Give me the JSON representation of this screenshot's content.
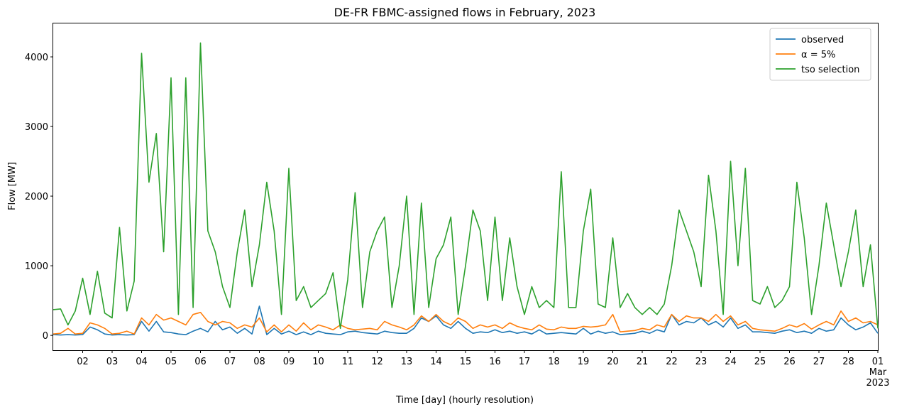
{
  "chart_data": {
    "type": "line",
    "title": "DE-FR FBMC-assigned flows in February, 2023",
    "xlabel": "Time [day] (hourly resolution)",
    "ylabel": "Flow [MW]",
    "x": [
      1,
      1.25,
      1.5,
      1.75,
      2,
      2.25,
      2.5,
      2.75,
      3,
      3.25,
      3.5,
      3.75,
      4,
      4.25,
      4.5,
      4.75,
      5,
      5.25,
      5.5,
      5.75,
      6,
      6.25,
      6.5,
      6.75,
      7,
      7.25,
      7.5,
      7.75,
      8,
      8.25,
      8.5,
      8.75,
      9,
      9.25,
      9.5,
      9.75,
      10,
      10.25,
      10.5,
      10.75,
      11,
      11.25,
      11.5,
      11.75,
      12,
      12.25,
      12.5,
      12.75,
      13,
      13.25,
      13.5,
      13.75,
      14,
      14.25,
      14.5,
      14.75,
      15,
      15.25,
      15.5,
      15.75,
      16,
      16.25,
      16.5,
      16.75,
      17,
      17.25,
      17.5,
      17.75,
      18,
      18.25,
      18.5,
      18.75,
      19,
      19.25,
      19.5,
      19.75,
      20,
      20.25,
      20.5,
      20.75,
      21,
      21.25,
      21.5,
      21.75,
      22,
      22.25,
      22.5,
      22.75,
      23,
      23.25,
      23.5,
      23.75,
      24,
      24.25,
      24.5,
      24.75,
      25,
      25.25,
      25.5,
      25.75,
      26,
      26.25,
      26.5,
      26.75,
      27,
      27.25,
      27.5,
      27.75,
      28,
      28.25,
      28.5,
      28.75,
      29
    ],
    "series": [
      {
        "name": "observed",
        "color": "#1f77b4",
        "values": [
          10,
          5,
          10,
          5,
          10,
          120,
          80,
          20,
          5,
          10,
          5,
          10,
          200,
          60,
          200,
          50,
          40,
          20,
          10,
          60,
          100,
          50,
          200,
          80,
          120,
          30,
          100,
          20,
          420,
          10,
          100,
          20,
          60,
          10,
          50,
          10,
          60,
          30,
          20,
          10,
          50,
          60,
          40,
          30,
          20,
          60,
          40,
          30,
          30,
          100,
          250,
          200,
          280,
          150,
          100,
          200,
          100,
          30,
          50,
          40,
          80,
          40,
          60,
          30,
          50,
          20,
          80,
          20,
          30,
          40,
          30,
          20,
          100,
          20,
          60,
          30,
          50,
          10,
          20,
          30,
          60,
          30,
          80,
          50,
          300,
          150,
          200,
          180,
          250,
          150,
          200,
          120,
          250,
          100,
          150,
          50,
          50,
          40,
          30,
          60,
          80,
          40,
          60,
          30,
          100,
          60,
          80,
          250,
          150,
          80,
          120,
          180,
          30
        ]
      },
      {
        "name": "α = 5%",
        "color": "#ff7f0e",
        "values": [
          20,
          30,
          100,
          20,
          30,
          180,
          150,
          100,
          20,
          30,
          60,
          20,
          250,
          150,
          300,
          220,
          250,
          200,
          150,
          300,
          330,
          200,
          150,
          200,
          180,
          100,
          150,
          120,
          250,
          50,
          150,
          50,
          150,
          60,
          180,
          80,
          150,
          120,
          80,
          150,
          100,
          80,
          90,
          100,
          80,
          200,
          150,
          120,
          80,
          150,
          280,
          200,
          300,
          200,
          150,
          250,
          200,
          100,
          150,
          120,
          150,
          100,
          180,
          130,
          100,
          80,
          150,
          90,
          80,
          120,
          100,
          100,
          130,
          120,
          130,
          150,
          300,
          50,
          60,
          70,
          100,
          80,
          150,
          120,
          300,
          200,
          280,
          250,
          250,
          200,
          300,
          200,
          280,
          150,
          200,
          100,
          80,
          70,
          60,
          100,
          150,
          120,
          170,
          90,
          150,
          200,
          150,
          350,
          200,
          250,
          180,
          200,
          150
        ]
      },
      {
        "name": "tso selection",
        "color": "#2ca02c",
        "values": [
          370,
          380,
          150,
          350,
          820,
          300,
          920,
          320,
          250,
          1550,
          350,
          780,
          4050,
          2200,
          2900,
          1200,
          3700,
          300,
          3700,
          400,
          4200,
          1500,
          1200,
          700,
          400,
          1200,
          1800,
          700,
          1300,
          2200,
          1500,
          300,
          2400,
          500,
          700,
          400,
          500,
          600,
          900,
          100,
          800,
          2050,
          400,
          1200,
          1500,
          1700,
          400,
          1000,
          2000,
          300,
          1900,
          400,
          1100,
          1300,
          1700,
          300,
          1000,
          1800,
          1500,
          500,
          1700,
          500,
          1400,
          700,
          300,
          700,
          400,
          500,
          400,
          2350,
          400,
          400,
          1500,
          2100,
          450,
          400,
          1400,
          400,
          600,
          400,
          300,
          400,
          300,
          450,
          1000,
          1800,
          1500,
          1200,
          700,
          2300,
          1500,
          300,
          2500,
          1000,
          2400,
          500,
          450,
          700,
          400,
          500,
          700,
          2200,
          1400,
          300,
          1000,
          1900,
          1300,
          700,
          1200,
          1800,
          700,
          1300,
          100
        ]
      }
    ],
    "xlim": [
      1,
      29
    ],
    "xticks": [
      {
        "value": 2,
        "label": "02"
      },
      {
        "value": 3,
        "label": "03"
      },
      {
        "value": 4,
        "label": "04"
      },
      {
        "value": 5,
        "label": "05"
      },
      {
        "value": 6,
        "label": "06"
      },
      {
        "value": 7,
        "label": "07"
      },
      {
        "value": 8,
        "label": "08"
      },
      {
        "value": 9,
        "label": "09"
      },
      {
        "value": 10,
        "label": "10"
      },
      11,
      12,
      13,
      14,
      15,
      16,
      17,
      18,
      19,
      20,
      21,
      22,
      23,
      24,
      25,
      26,
      27,
      28,
      {
        "value": 29,
        "label": "01"
      }
    ],
    "xtick_sublabels": [
      "Mar",
      "2023"
    ],
    "ylim": [
      -213,
      4480
    ],
    "yticks": [
      0,
      1000,
      2000,
      3000,
      4000
    ],
    "legend": "upper right"
  }
}
